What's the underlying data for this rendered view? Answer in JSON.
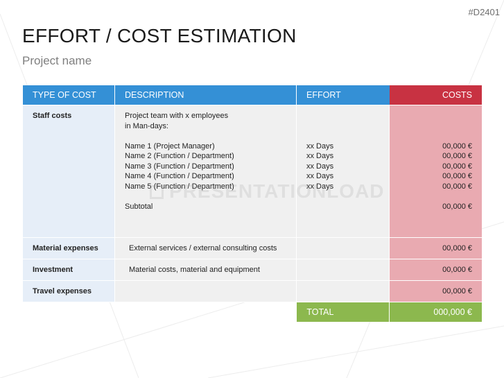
{
  "slide": {
    "code": "#D2401",
    "title": "EFFORT / COST ESTIMATION",
    "subtitle": "Project name",
    "watermark": "PRESENTATIONLOAD"
  },
  "table": {
    "headers": {
      "type": "TYPE OF COST",
      "description": "DESCRIPTION",
      "effort": "EFFORT",
      "costs": "COSTS"
    },
    "staff": {
      "type": "Staff costs",
      "desc_intro": [
        "Project team with x employees",
        "in Man-days:"
      ],
      "names": [
        "Name 1 (Project Manager)",
        "Name 2 (Function / Department)",
        "Name 3 (Function / Department)",
        "Name 4 (Function / Department)",
        "Name 5 (Function / Department)"
      ],
      "subtotal_label": "Subtotal",
      "efforts": [
        "xx Days",
        "xx Days",
        "xx Days",
        "xx Days",
        "xx Days"
      ],
      "costs": [
        "00,000 €",
        "00,000 €",
        "00,000 €",
        "00,000 €",
        "00,000 €"
      ],
      "subtotal_cost": "00,000 €"
    },
    "rows": [
      {
        "type": "Material expenses",
        "description": "External services / external consulting costs",
        "effort": "",
        "cost": "00,000 €"
      },
      {
        "type": "Investment",
        "description": "Material costs, material and equipment",
        "effort": "",
        "cost": "00,000 €"
      },
      {
        "type": "Travel expenses",
        "description": "",
        "effort": "",
        "cost": "00,000 €"
      }
    ],
    "total": {
      "label": "TOTAL",
      "value": "000,000 €"
    }
  },
  "colors": {
    "header_blue": "#3490d6",
    "header_red": "#c83242",
    "cost_cell_pink": "#e9aab1",
    "type_cell_light_blue": "#e6eef8",
    "body_grey": "#f0f0f0",
    "total_green": "#8cb84e"
  }
}
